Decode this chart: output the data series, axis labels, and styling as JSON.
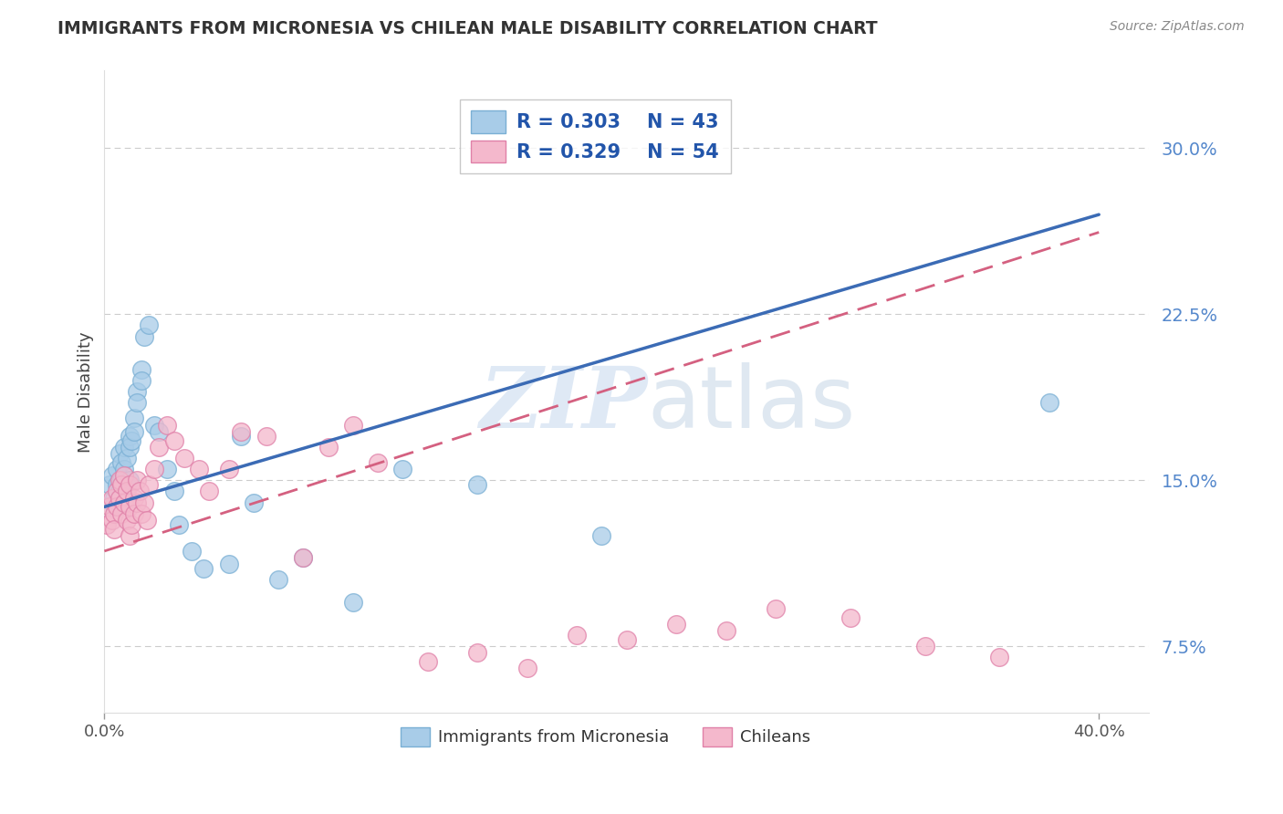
{
  "title": "IMMIGRANTS FROM MICRONESIA VS CHILEAN MALE DISABILITY CORRELATION CHART",
  "source": "Source: ZipAtlas.com",
  "ylabel": "Male Disability",
  "y_ticks": [
    0.075,
    0.15,
    0.225,
    0.3
  ],
  "y_tick_labels": [
    "7.5%",
    "15.0%",
    "22.5%",
    "30.0%"
  ],
  "xlim": [
    0.0,
    0.42
  ],
  "ylim": [
    0.045,
    0.335
  ],
  "watermark": "ZIPatlas",
  "legend_r1": "R = 0.303",
  "legend_n1": "N = 43",
  "legend_r2": "R = 0.329",
  "legend_n2": "N = 54",
  "blue_color": "#a8cce8",
  "blue_edge_color": "#7aafd4",
  "pink_color": "#f4b8cc",
  "pink_edge_color": "#e080a8",
  "blue_line_color": "#3b6bb5",
  "pink_line_color": "#d46080",
  "blue_scatter_x": [
    0.002,
    0.003,
    0.004,
    0.004,
    0.005,
    0.005,
    0.006,
    0.006,
    0.007,
    0.007,
    0.008,
    0.008,
    0.009,
    0.009,
    0.01,
    0.01,
    0.01,
    0.011,
    0.012,
    0.012,
    0.013,
    0.013,
    0.015,
    0.015,
    0.016,
    0.018,
    0.02,
    0.022,
    0.025,
    0.028,
    0.03,
    0.035,
    0.04,
    0.05,
    0.055,
    0.06,
    0.07,
    0.08,
    0.1,
    0.12,
    0.15,
    0.2,
    0.38
  ],
  "blue_scatter_y": [
    0.148,
    0.152,
    0.142,
    0.138,
    0.155,
    0.148,
    0.162,
    0.145,
    0.158,
    0.15,
    0.165,
    0.155,
    0.16,
    0.148,
    0.17,
    0.165,
    0.15,
    0.168,
    0.178,
    0.172,
    0.19,
    0.185,
    0.2,
    0.195,
    0.215,
    0.22,
    0.175,
    0.172,
    0.155,
    0.145,
    0.13,
    0.118,
    0.11,
    0.112,
    0.17,
    0.14,
    0.105,
    0.115,
    0.095,
    0.155,
    0.148,
    0.125,
    0.185
  ],
  "pink_scatter_x": [
    0.001,
    0.002,
    0.003,
    0.003,
    0.004,
    0.004,
    0.005,
    0.005,
    0.006,
    0.006,
    0.007,
    0.007,
    0.008,
    0.008,
    0.009,
    0.009,
    0.01,
    0.01,
    0.01,
    0.011,
    0.012,
    0.012,
    0.013,
    0.013,
    0.014,
    0.015,
    0.016,
    0.017,
    0.018,
    0.02,
    0.022,
    0.025,
    0.028,
    0.032,
    0.038,
    0.042,
    0.05,
    0.055,
    0.065,
    0.08,
    0.09,
    0.1,
    0.11,
    0.13,
    0.15,
    0.17,
    0.19,
    0.21,
    0.23,
    0.25,
    0.27,
    0.3,
    0.33,
    0.36
  ],
  "pink_scatter_y": [
    0.13,
    0.138,
    0.132,
    0.142,
    0.135,
    0.128,
    0.145,
    0.138,
    0.15,
    0.142,
    0.148,
    0.135,
    0.152,
    0.14,
    0.145,
    0.132,
    0.148,
    0.138,
    0.125,
    0.13,
    0.142,
    0.135,
    0.15,
    0.14,
    0.145,
    0.135,
    0.14,
    0.132,
    0.148,
    0.155,
    0.165,
    0.175,
    0.168,
    0.16,
    0.155,
    0.145,
    0.155,
    0.172,
    0.17,
    0.115,
    0.165,
    0.175,
    0.158,
    0.068,
    0.072,
    0.065,
    0.08,
    0.078,
    0.085,
    0.082,
    0.092,
    0.088,
    0.075,
    0.07
  ]
}
